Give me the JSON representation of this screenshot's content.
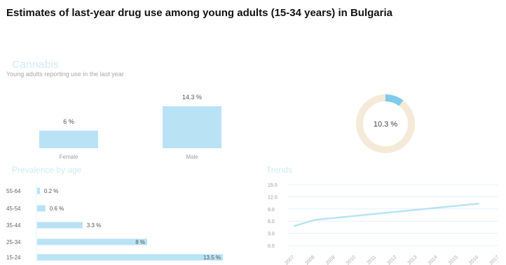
{
  "page": {
    "title": "Estimates of last-year drug use among young adults (15-34 years) in Bulgaria",
    "section_title": "Cannabis",
    "section_subtitle": "Young adults reporting use in the last year"
  },
  "colors": {
    "bar": "#b9e3f5",
    "donut_fill": "#7fcbeb",
    "donut_rest": "#f5ead9",
    "grid": "#e0f2fb",
    "trend_line": "#b9e3f5"
  },
  "chart_data": [
    {
      "type": "bar",
      "name": "gender",
      "categories": [
        "Female",
        "Male"
      ],
      "values": [
        6,
        14.3
      ],
      "value_labels": [
        "6 %",
        "14.3 %"
      ]
    },
    {
      "type": "pie",
      "name": "overall",
      "value": 10.3,
      "label": "10.3 %"
    },
    {
      "type": "bar",
      "name": "age",
      "orientation": "horizontal",
      "title": "Prevalence by age",
      "categories": [
        "55-64",
        "45-54",
        "35-44",
        "25-34",
        "15-24"
      ],
      "values": [
        0.2,
        0.6,
        3.3,
        8,
        13.5
      ],
      "value_labels": [
        "0.2 %",
        "0.6 %",
        "3.3 %",
        "8 %",
        "13.5 %"
      ]
    },
    {
      "type": "line",
      "name": "trends",
      "title": "Trends",
      "x": [
        "2007",
        "2008",
        "2009",
        "2010",
        "2011",
        "2012",
        "2013",
        "2014",
        "2015",
        "2016",
        "2017"
      ],
      "y_ticks": [
        "15.0",
        "12.0",
        "9.0",
        "6.0",
        "3.0",
        "0.0"
      ],
      "ylim": [
        0,
        15
      ],
      "points": [
        {
          "x": "2007",
          "y": 4.8
        },
        {
          "x": "2008",
          "y": 6.3
        },
        {
          "x": "2016",
          "y": 10.3
        }
      ]
    }
  ]
}
